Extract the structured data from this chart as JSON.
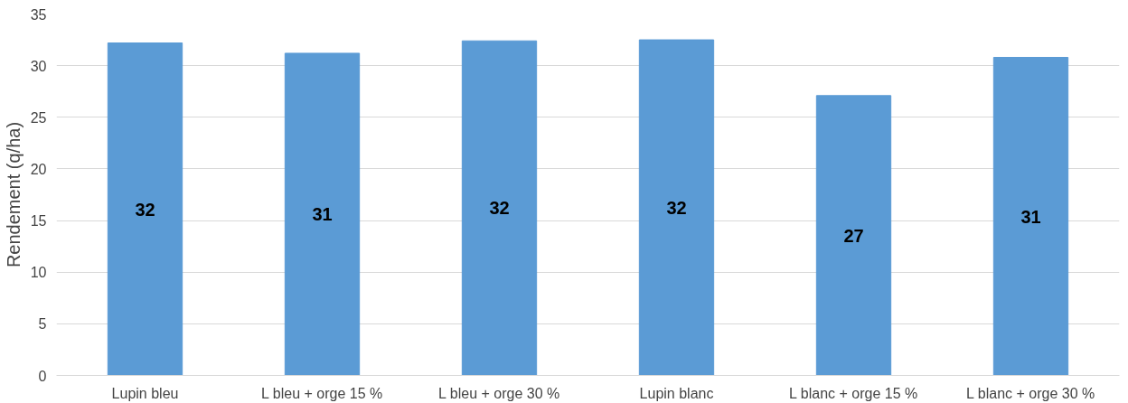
{
  "chart_data": {
    "type": "bar",
    "ylabel": "Rendement (q/ha)",
    "categories": [
      "Lupin bleu",
      "L bleu + orge 15 %",
      "L bleu + orge 30 %",
      "Lupin blanc",
      "L blanc + orge 15 %",
      "L blanc + orge 30 %"
    ],
    "values": [
      32.2,
      31.2,
      32.4,
      32.5,
      27.1,
      30.8
    ],
    "value_labels": [
      "32",
      "31",
      "32",
      "32",
      "27",
      "31"
    ],
    "color": "#5b9bd5",
    "ylim": [
      0,
      35
    ],
    "yticks": [
      0,
      5,
      10,
      15,
      20,
      25,
      30,
      35
    ],
    "grid": "y"
  }
}
